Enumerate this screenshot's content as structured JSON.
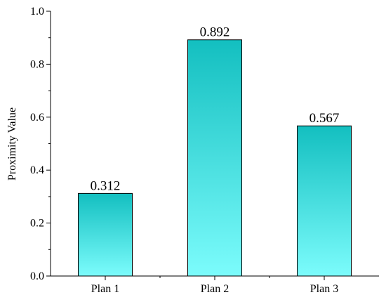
{
  "chart_data": {
    "type": "bar",
    "categories": [
      "Plan 1",
      "Plan 2",
      "Plan 3"
    ],
    "values": [
      0.312,
      0.892,
      0.567
    ],
    "data_labels": [
      "0.312",
      "0.892",
      "0.567"
    ],
    "title": "",
    "xlabel": "",
    "ylabel": "Proximity Value",
    "ylim": [
      0,
      1.0
    ],
    "yticks": [
      0.0,
      0.2,
      0.4,
      0.6,
      0.8,
      1.0
    ],
    "ytick_labels": [
      "0.0",
      "0.2",
      "0.4",
      "0.6",
      "0.8",
      "1.0"
    ],
    "grid": false,
    "legend": "none",
    "colors": {
      "bar_top": "#13bfc0",
      "bar_bottom": "#7cfcfc",
      "bar_edge": "#000000",
      "axis": "#000000"
    }
  }
}
